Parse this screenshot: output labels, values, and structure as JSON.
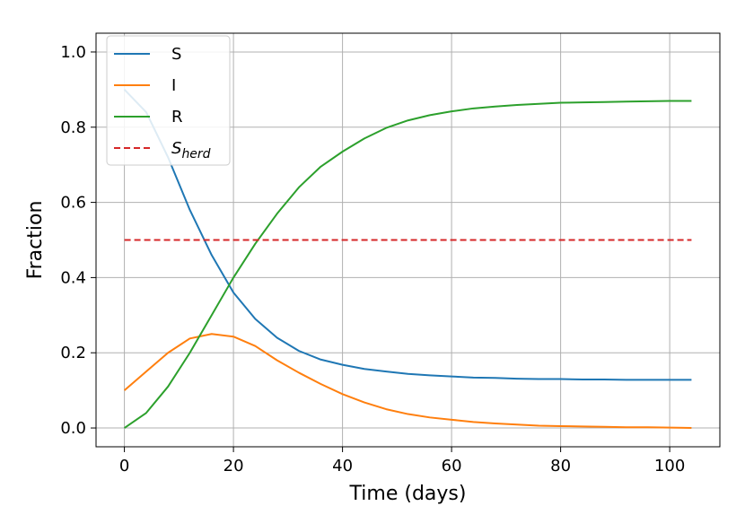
{
  "chart_data": {
    "type": "line",
    "xlabel": "Time (days)",
    "ylabel": "Fraction",
    "xlim": [
      -5.2,
      109.2
    ],
    "ylim": [
      -0.05,
      1.05
    ],
    "xticks": [
      0,
      20,
      40,
      60,
      80,
      100
    ],
    "yticks": [
      0.0,
      0.2,
      0.4,
      0.6,
      0.8,
      1.0
    ],
    "xtick_labels": [
      "0",
      "20",
      "40",
      "60",
      "80",
      "100"
    ],
    "ytick_labels": [
      "0.0",
      "0.2",
      "0.4",
      "0.6",
      "0.8",
      "1.0"
    ],
    "grid": true,
    "legend_position": "top-left",
    "x": [
      0,
      4,
      8,
      12,
      16,
      20,
      24,
      28,
      32,
      36,
      40,
      44,
      48,
      52,
      56,
      60,
      64,
      68,
      72,
      76,
      80,
      84,
      88,
      92,
      96,
      100,
      104
    ],
    "series": [
      {
        "name": "S",
        "color": "#1f77b4",
        "dash": "solid",
        "values": [
          0.9,
          0.84,
          0.72,
          0.58,
          0.46,
          0.36,
          0.29,
          0.24,
          0.205,
          0.182,
          0.168,
          0.157,
          0.15,
          0.144,
          0.14,
          0.137,
          0.134,
          0.133,
          0.131,
          0.13,
          0.13,
          0.129,
          0.129,
          0.128,
          0.128,
          0.128,
          0.128
        ]
      },
      {
        "name": "I",
        "color": "#ff7f0e",
        "dash": "solid",
        "values": [
          0.1,
          0.15,
          0.2,
          0.238,
          0.25,
          0.243,
          0.218,
          0.18,
          0.147,
          0.117,
          0.09,
          0.068,
          0.05,
          0.037,
          0.028,
          0.022,
          0.016,
          0.012,
          0.009,
          0.006,
          0.005,
          0.004,
          0.003,
          0.002,
          0.002,
          0.001,
          0.0
        ]
      },
      {
        "name": "R",
        "color": "#2ca02c",
        "dash": "solid",
        "values": [
          0.0,
          0.04,
          0.11,
          0.2,
          0.3,
          0.4,
          0.49,
          0.57,
          0.64,
          0.695,
          0.735,
          0.77,
          0.798,
          0.818,
          0.832,
          0.842,
          0.85,
          0.855,
          0.859,
          0.862,
          0.865,
          0.866,
          0.867,
          0.868,
          0.869,
          0.87,
          0.87
        ]
      },
      {
        "name": "S",
        "name_subscript": "herd",
        "color": "#d62728",
        "dash": "dashed",
        "values": [
          0.5,
          0.5,
          0.5,
          0.5,
          0.5,
          0.5,
          0.5,
          0.5,
          0.5,
          0.5,
          0.5,
          0.5,
          0.5,
          0.5,
          0.5,
          0.5,
          0.5,
          0.5,
          0.5,
          0.5,
          0.5,
          0.5,
          0.5,
          0.5,
          0.5,
          0.5,
          0.5
        ]
      }
    ]
  }
}
